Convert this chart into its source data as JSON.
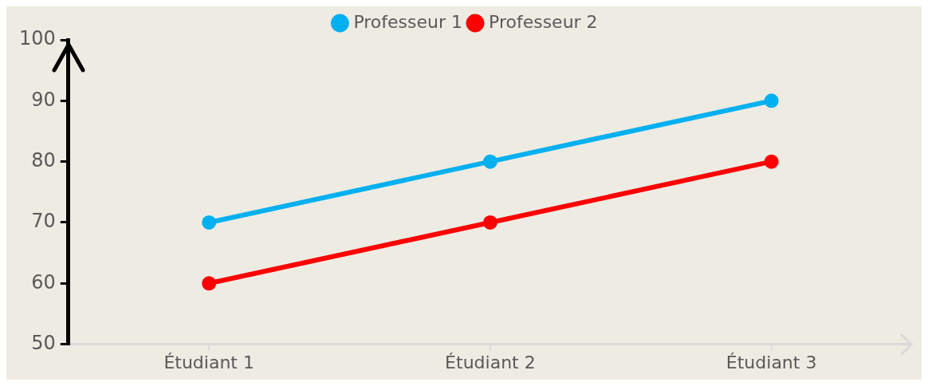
{
  "chart_data": {
    "type": "line",
    "categories": [
      "Étudiant 1",
      "Étudiant 2",
      "Étudiant 3"
    ],
    "series": [
      {
        "name": "Professeur 1",
        "color": "#00b0f0",
        "values": [
          70,
          80,
          90
        ]
      },
      {
        "name": "Professeur 2",
        "color": "#ff0000",
        "values": [
          60,
          70,
          80
        ]
      }
    ],
    "ylim": [
      50,
      100
    ],
    "yticks": [
      50,
      60,
      70,
      80,
      90,
      100
    ],
    "grid": false,
    "legend": "top",
    "marker": "circle",
    "line_style": "solid"
  }
}
